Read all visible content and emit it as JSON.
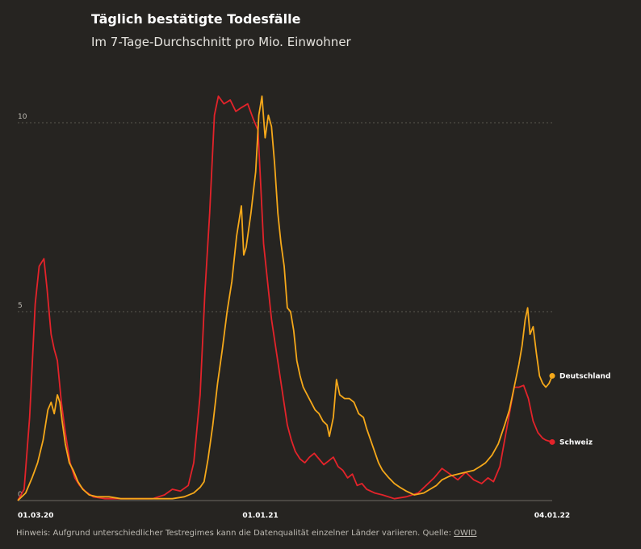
{
  "title": "Täglich bestätigte Todesfälle",
  "subtitle": "Im 7-Tage-Durchschnitt pro Mio. Einwohner",
  "note": {
    "text": "Hinweis: Aufgrund unterschiedlicher Testregimes kann die Datenqualität einzelner Länder variieren. Quelle: ",
    "link": "OWID"
  },
  "chart_data": {
    "type": "line",
    "ylim": [
      0,
      10
    ],
    "yticks": [
      {
        "value": 0,
        "label": "0"
      },
      {
        "value": 5,
        "label": "5"
      },
      {
        "value": 10,
        "label": "10"
      }
    ],
    "xlim": [
      "01.03.20",
      "04.01.22"
    ],
    "xticks": [
      {
        "day": 0,
        "label": "01.03.20"
      },
      {
        "day": 306,
        "label": "01.01.21"
      },
      {
        "day": 674,
        "label": "04.01.22"
      }
    ],
    "grid": true,
    "legend": "end-of-line labels",
    "x_unit": "days since 01.03.20",
    "series": [
      {
        "name": "Schweiz",
        "color": "#e3232a",
        "points": [
          [
            0,
            0
          ],
          [
            8,
            0.3
          ],
          [
            15,
            2.2
          ],
          [
            22,
            5.2
          ],
          [
            27,
            6.2
          ],
          [
            33,
            6.4
          ],
          [
            37,
            5.6
          ],
          [
            42,
            4.4
          ],
          [
            46,
            4.0
          ],
          [
            50,
            3.7
          ],
          [
            55,
            2.6
          ],
          [
            60,
            1.8
          ],
          [
            66,
            1.0
          ],
          [
            72,
            0.6
          ],
          [
            78,
            0.4
          ],
          [
            85,
            0.25
          ],
          [
            95,
            0.1
          ],
          [
            110,
            0.05
          ],
          [
            140,
            0.05
          ],
          [
            170,
            0.05
          ],
          [
            185,
            0.15
          ],
          [
            195,
            0.3
          ],
          [
            205,
            0.25
          ],
          [
            215,
            0.4
          ],
          [
            222,
            1.0
          ],
          [
            230,
            2.8
          ],
          [
            236,
            5.5
          ],
          [
            242,
            7.6
          ],
          [
            248,
            10.2
          ],
          [
            253,
            10.7
          ],
          [
            260,
            10.5
          ],
          [
            268,
            10.6
          ],
          [
            275,
            10.3
          ],
          [
            282,
            10.4
          ],
          [
            290,
            10.5
          ],
          [
            297,
            10.1
          ],
          [
            303,
            9.8
          ],
          [
            306,
            8.5
          ],
          [
            310,
            6.8
          ],
          [
            315,
            5.8
          ],
          [
            320,
            4.8
          ],
          [
            325,
            4.1
          ],
          [
            330,
            3.4
          ],
          [
            335,
            2.7
          ],
          [
            340,
            2.0
          ],
          [
            345,
            1.6
          ],
          [
            350,
            1.3
          ],
          [
            356,
            1.1
          ],
          [
            362,
            1.0
          ],
          [
            368,
            1.15
          ],
          [
            374,
            1.25
          ],
          [
            380,
            1.1
          ],
          [
            386,
            0.95
          ],
          [
            392,
            1.05
          ],
          [
            398,
            1.15
          ],
          [
            404,
            0.9
          ],
          [
            410,
            0.8
          ],
          [
            416,
            0.6
          ],
          [
            422,
            0.7
          ],
          [
            428,
            0.4
          ],
          [
            434,
            0.45
          ],
          [
            440,
            0.3
          ],
          [
            450,
            0.2
          ],
          [
            460,
            0.15
          ],
          [
            475,
            0.05
          ],
          [
            490,
            0.1
          ],
          [
            505,
            0.2
          ],
          [
            515,
            0.4
          ],
          [
            525,
            0.6
          ],
          [
            535,
            0.85
          ],
          [
            545,
            0.7
          ],
          [
            555,
            0.55
          ],
          [
            565,
            0.75
          ],
          [
            575,
            0.55
          ],
          [
            585,
            0.45
          ],
          [
            593,
            0.6
          ],
          [
            600,
            0.5
          ],
          [
            608,
            0.9
          ],
          [
            614,
            1.6
          ],
          [
            620,
            2.3
          ],
          [
            626,
            3.0
          ],
          [
            632,
            3.0
          ],
          [
            638,
            3.05
          ],
          [
            644,
            2.7
          ],
          [
            650,
            2.1
          ],
          [
            656,
            1.8
          ],
          [
            662,
            1.65
          ],
          [
            666,
            1.6
          ],
          [
            674,
            1.55
          ]
        ]
      },
      {
        "name": "Deutschland",
        "color": "#f5a81a",
        "points": [
          [
            0,
            0
          ],
          [
            10,
            0.2
          ],
          [
            18,
            0.6
          ],
          [
            25,
            1.0
          ],
          [
            32,
            1.6
          ],
          [
            38,
            2.4
          ],
          [
            42,
            2.6
          ],
          [
            46,
            2.3
          ],
          [
            50,
            2.8
          ],
          [
            53,
            2.6
          ],
          [
            56,
            2.1
          ],
          [
            60,
            1.5
          ],
          [
            65,
            1.0
          ],
          [
            70,
            0.8
          ],
          [
            76,
            0.5
          ],
          [
            82,
            0.3
          ],
          [
            90,
            0.15
          ],
          [
            100,
            0.1
          ],
          [
            115,
            0.1
          ],
          [
            130,
            0.05
          ],
          [
            150,
            0.05
          ],
          [
            175,
            0.05
          ],
          [
            195,
            0.05
          ],
          [
            210,
            0.1
          ],
          [
            222,
            0.2
          ],
          [
            230,
            0.35
          ],
          [
            235,
            0.5
          ],
          [
            240,
            1.1
          ],
          [
            246,
            2.0
          ],
          [
            252,
            3.1
          ],
          [
            258,
            4.0
          ],
          [
            264,
            5.0
          ],
          [
            270,
            5.8
          ],
          [
            276,
            7.0
          ],
          [
            282,
            7.8
          ],
          [
            285,
            6.5
          ],
          [
            288,
            6.7
          ],
          [
            294,
            7.6
          ],
          [
            300,
            8.7
          ],
          [
            304,
            10.2
          ],
          [
            308,
            10.7
          ],
          [
            312,
            9.6
          ],
          [
            316,
            10.2
          ],
          [
            320,
            9.9
          ],
          [
            324,
            8.9
          ],
          [
            328,
            7.6
          ],
          [
            332,
            6.8
          ],
          [
            336,
            6.2
          ],
          [
            340,
            5.1
          ],
          [
            344,
            5.0
          ],
          [
            348,
            4.5
          ],
          [
            352,
            3.7
          ],
          [
            356,
            3.3
          ],
          [
            360,
            3.0
          ],
          [
            365,
            2.8
          ],
          [
            370,
            2.6
          ],
          [
            375,
            2.4
          ],
          [
            380,
            2.3
          ],
          [
            385,
            2.1
          ],
          [
            390,
            2.0
          ],
          [
            393,
            1.7
          ],
          [
            398,
            2.2
          ],
          [
            402,
            3.2
          ],
          [
            406,
            2.8
          ],
          [
            412,
            2.7
          ],
          [
            418,
            2.7
          ],
          [
            424,
            2.6
          ],
          [
            430,
            2.3
          ],
          [
            436,
            2.2
          ],
          [
            440,
            1.9
          ],
          [
            445,
            1.6
          ],
          [
            450,
            1.3
          ],
          [
            455,
            1.0
          ],
          [
            460,
            0.8
          ],
          [
            468,
            0.6
          ],
          [
            475,
            0.45
          ],
          [
            482,
            0.35
          ],
          [
            490,
            0.25
          ],
          [
            500,
            0.15
          ],
          [
            512,
            0.2
          ],
          [
            520,
            0.3
          ],
          [
            528,
            0.4
          ],
          [
            535,
            0.55
          ],
          [
            545,
            0.65
          ],
          [
            555,
            0.7
          ],
          [
            565,
            0.75
          ],
          [
            575,
            0.8
          ],
          [
            583,
            0.9
          ],
          [
            590,
            1.0
          ],
          [
            598,
            1.2
          ],
          [
            606,
            1.5
          ],
          [
            614,
            2.0
          ],
          [
            620,
            2.4
          ],
          [
            626,
            3.0
          ],
          [
            632,
            3.6
          ],
          [
            636,
            4.1
          ],
          [
            640,
            4.8
          ],
          [
            643,
            5.1
          ],
          [
            646,
            4.4
          ],
          [
            650,
            4.6
          ],
          [
            654,
            3.9
          ],
          [
            658,
            3.3
          ],
          [
            662,
            3.1
          ],
          [
            666,
            3.0
          ],
          [
            670,
            3.1
          ],
          [
            674,
            3.3
          ]
        ]
      }
    ]
  }
}
